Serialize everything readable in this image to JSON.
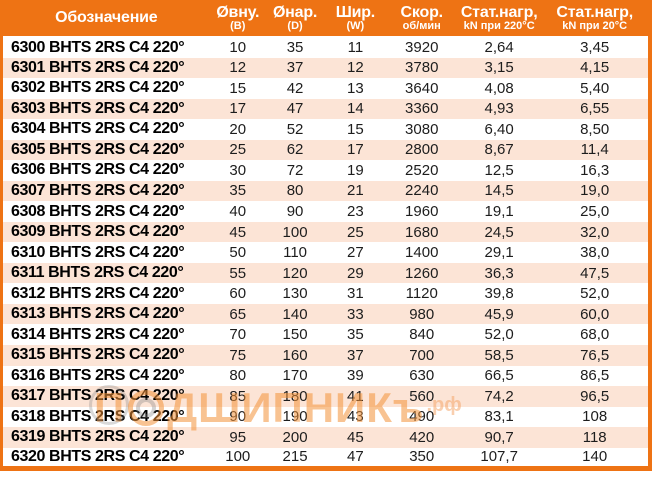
{
  "colors": {
    "header_orange": "#ee7314",
    "row_peach": "#fce4d6",
    "row_white": "#ffffff",
    "watermark_orange": "rgba(243,146,56,0.55)"
  },
  "watermark": {
    "part1": "П",
    "part2": "ДШИПНИКъ",
    "suffix": ".рф"
  },
  "table": {
    "columns": [
      {
        "label": "Обозначение",
        "sub": ""
      },
      {
        "label": "Øвну.",
        "sub": "(B)"
      },
      {
        "label": "Øнар.",
        "sub": "(D)"
      },
      {
        "label": "Шир.",
        "sub": "(W)"
      },
      {
        "label": "Скор.",
        "sub": "об/мин"
      },
      {
        "label": "Стат.нагр,",
        "sub": "kN при 220°С"
      },
      {
        "label": "Стат.нагр,",
        "sub": "kN при 20°С"
      }
    ],
    "rows": [
      [
        "6300 BHTS 2RS C4 220°",
        "10",
        "35",
        "11",
        "3920",
        "2,64",
        "3,45"
      ],
      [
        "6301 BHTS 2RS C4 220°",
        "12",
        "37",
        "12",
        "3780",
        "3,15",
        "4,15"
      ],
      [
        "6302 BHTS 2RS C4 220°",
        "15",
        "42",
        "13",
        "3640",
        "4,08",
        "5,40"
      ],
      [
        "6303 BHTS 2RS C4 220°",
        "17",
        "47",
        "14",
        "3360",
        "4,93",
        "6,55"
      ],
      [
        "6304 BHTS 2RS C4 220°",
        "20",
        "52",
        "15",
        "3080",
        "6,40",
        "8,50"
      ],
      [
        "6305 BHTS 2RS C4 220°",
        "25",
        "62",
        "17",
        "2800",
        "8,67",
        "11,4"
      ],
      [
        "6306 BHTS 2RS C4 220°",
        "30",
        "72",
        "19",
        "2520",
        "12,5",
        "16,3"
      ],
      [
        "6307 BHTS 2RS C4 220°",
        "35",
        "80",
        "21",
        "2240",
        "14,5",
        "19,0"
      ],
      [
        "6308 BHTS 2RS C4 220°",
        "40",
        "90",
        "23",
        "1960",
        "19,1",
        "25,0"
      ],
      [
        "6309 BHTS 2RS C4 220°",
        "45",
        "100",
        "25",
        "1680",
        "24,5",
        "32,0"
      ],
      [
        "6310 BHTS 2RS C4 220°",
        "50",
        "110",
        "27",
        "1400",
        "29,1",
        "38,0"
      ],
      [
        "6311 BHTS 2RS C4 220°",
        "55",
        "120",
        "29",
        "1260",
        "36,3",
        "47,5"
      ],
      [
        "6312 BHTS 2RS C4 220°",
        "60",
        "130",
        "31",
        "1120",
        "39,8",
        "52,0"
      ],
      [
        "6313 BHTS 2RS C4 220°",
        "65",
        "140",
        "33",
        "980",
        "45,9",
        "60,0"
      ],
      [
        "6314 BHTS 2RS C4 220°",
        "70",
        "150",
        "35",
        "840",
        "52,0",
        "68,0"
      ],
      [
        "6315 BHTS 2RS C4 220°",
        "75",
        "160",
        "37",
        "700",
        "58,5",
        "76,5"
      ],
      [
        "6316 BHTS 2RS C4 220°",
        "80",
        "170",
        "39",
        "630",
        "66,5",
        "86,5"
      ],
      [
        "6317 BHTS 2RS C4 220°",
        "85",
        "180",
        "41",
        "560",
        "74,2",
        "96,5"
      ],
      [
        "6318 BHTS 2RS C4 220°",
        "90",
        "190",
        "43",
        "490",
        "83,1",
        "108"
      ],
      [
        "6319 BHTS 2RS C4 220°",
        "95",
        "200",
        "45",
        "420",
        "90,7",
        "118"
      ],
      [
        "6320 BHTS 2RS C4 220°",
        "100",
        "215",
        "47",
        "350",
        "107,7",
        "140"
      ]
    ]
  }
}
